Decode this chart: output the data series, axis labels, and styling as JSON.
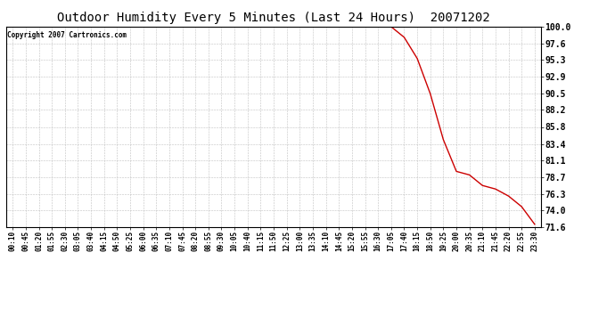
{
  "title": "Outdoor Humidity Every 5 Minutes (Last 24 Hours)  20071202",
  "copyright_text": "Copyright 2007 Cartronics.com",
  "line_color": "#cc0000",
  "background_color": "#ffffff",
  "plot_bg_color": "#ffffff",
  "grid_color": "#bbbbbb",
  "ylim": [
    71.6,
    100.0
  ],
  "yticks": [
    71.6,
    74.0,
    76.3,
    78.7,
    81.1,
    83.4,
    85.8,
    88.2,
    90.5,
    92.9,
    95.3,
    97.6,
    100.0
  ],
  "x_labels": [
    "00:10",
    "00:45",
    "01:20",
    "01:55",
    "02:30",
    "03:05",
    "03:40",
    "04:15",
    "04:50",
    "05:25",
    "06:00",
    "06:35",
    "07:10",
    "07:45",
    "08:20",
    "08:55",
    "09:30",
    "10:05",
    "10:40",
    "11:15",
    "11:50",
    "12:25",
    "13:00",
    "13:35",
    "14:10",
    "14:45",
    "15:20",
    "15:55",
    "16:30",
    "17:05",
    "17:40",
    "18:15",
    "18:50",
    "19:25",
    "20:00",
    "20:35",
    "21:10",
    "21:45",
    "22:20",
    "22:55",
    "23:30"
  ],
  "humidity_data": [
    [
      "00:10",
      100.0
    ],
    [
      "00:45",
      100.0
    ],
    [
      "01:20",
      100.0
    ],
    [
      "01:55",
      100.0
    ],
    [
      "02:30",
      100.0
    ],
    [
      "03:05",
      100.0
    ],
    [
      "03:40",
      100.0
    ],
    [
      "04:15",
      100.0
    ],
    [
      "04:50",
      100.0
    ],
    [
      "05:25",
      100.0
    ],
    [
      "06:00",
      100.0
    ],
    [
      "06:35",
      100.0
    ],
    [
      "07:10",
      100.0
    ],
    [
      "07:45",
      100.0
    ],
    [
      "08:20",
      100.0
    ],
    [
      "08:55",
      100.0
    ],
    [
      "09:30",
      100.0
    ],
    [
      "10:05",
      100.0
    ],
    [
      "10:40",
      100.0
    ],
    [
      "11:15",
      100.0
    ],
    [
      "11:50",
      100.0
    ],
    [
      "12:25",
      100.0
    ],
    [
      "13:00",
      100.0
    ],
    [
      "13:35",
      100.0
    ],
    [
      "14:10",
      100.0
    ],
    [
      "14:45",
      100.0
    ],
    [
      "15:20",
      100.0
    ],
    [
      "15:55",
      100.0
    ],
    [
      "16:30",
      100.0
    ],
    [
      "17:05",
      100.0
    ],
    [
      "17:40",
      98.5
    ],
    [
      "18:15",
      95.5
    ],
    [
      "18:50",
      90.5
    ],
    [
      "19:25",
      84.0
    ],
    [
      "20:00",
      79.5
    ],
    [
      "20:35",
      79.0
    ],
    [
      "21:10",
      77.5
    ],
    [
      "21:45",
      77.0
    ],
    [
      "22:20",
      76.0
    ],
    [
      "22:55",
      74.5
    ],
    [
      "23:30",
      72.0
    ]
  ]
}
